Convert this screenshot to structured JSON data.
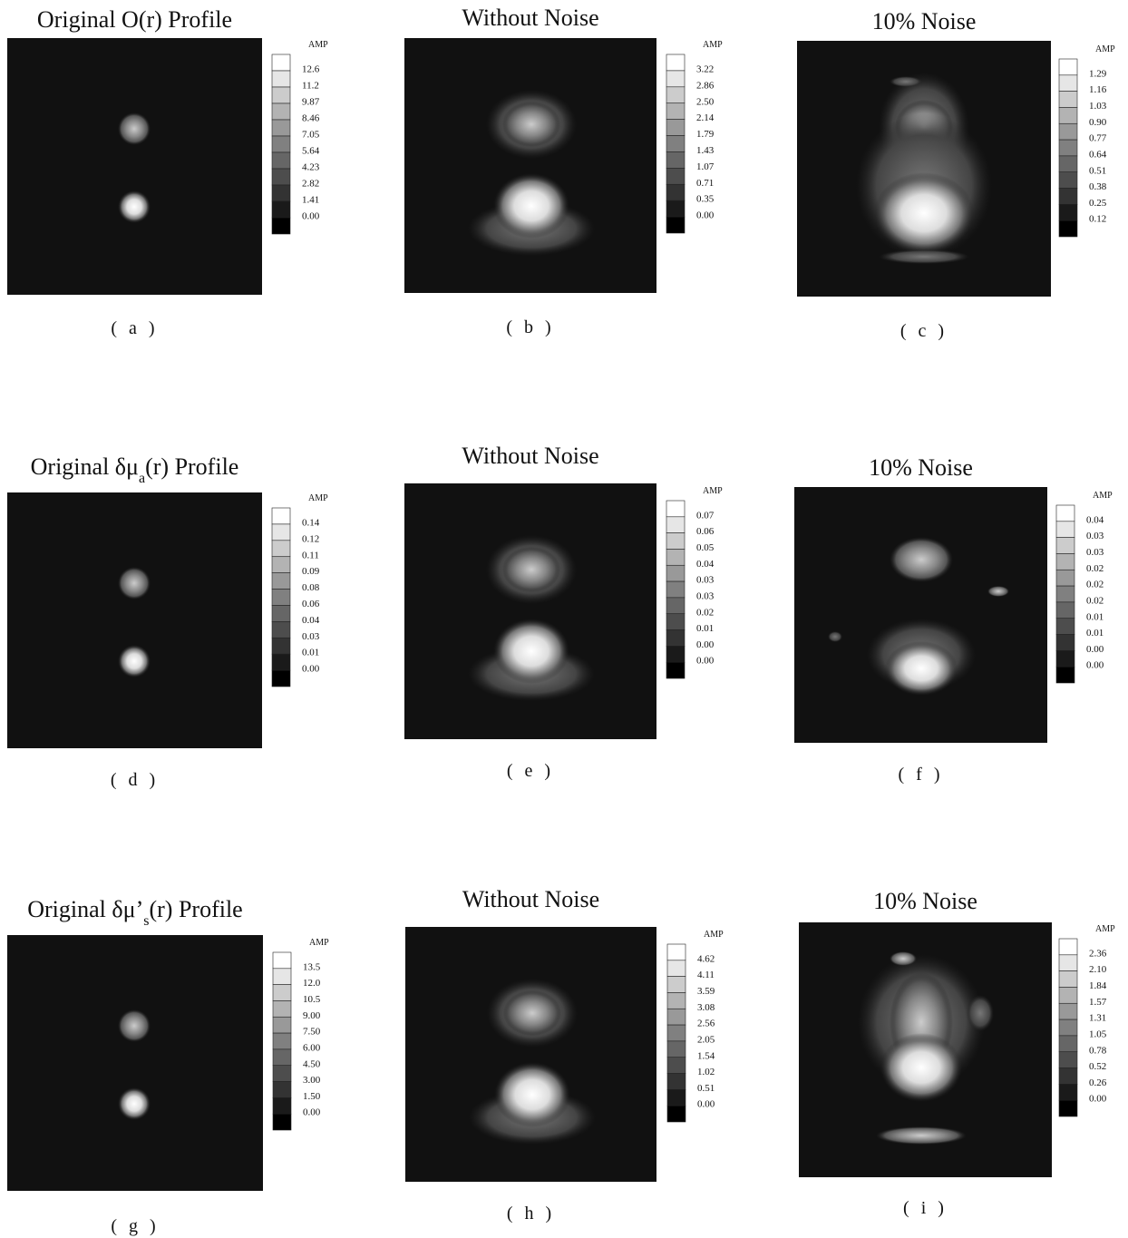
{
  "panels": [
    {
      "title": [
        "Original O(r) Profile"
      ],
      "caption": "( a )",
      "colorbar": {
        "label": "AMP",
        "ticks": [
          "12.6",
          "11.2",
          "9.87",
          "8.46",
          "7.05",
          "5.64",
          "4.23",
          "2.82",
          "1.41",
          "0.00"
        ]
      }
    },
    {
      "title": [
        "Without Noise"
      ],
      "caption": "( b )",
      "colorbar": {
        "label": "AMP",
        "ticks": [
          "3.22",
          "2.86",
          "2.50",
          "2.14",
          "1.79",
          "1.43",
          "1.07",
          "0.71",
          "0.35",
          "0.00"
        ]
      }
    },
    {
      "title": [
        "10% Noise"
      ],
      "caption": "( c )",
      "colorbar": {
        "label": "AMP",
        "ticks": [
          "1.29",
          "1.16",
          "1.03",
          "0.90",
          "0.77",
          "0.64",
          "0.51",
          "0.38",
          "0.25",
          "0.12"
        ]
      }
    },
    {
      "title": [
        "Original δμ",
        "a",
        "(r) Profile"
      ],
      "caption": "( d )",
      "colorbar": {
        "label": "AMP",
        "ticks": [
          "0.14",
          "0.12",
          "0.11",
          "0.09",
          "0.08",
          "0.06",
          "0.04",
          "0.03",
          "0.01",
          "0.00"
        ]
      }
    },
    {
      "title": [
        "Without Noise"
      ],
      "caption": "( e )",
      "colorbar": {
        "label": "AMP",
        "ticks": [
          "0.07",
          "0.06",
          "0.05",
          "0.04",
          "0.03",
          "0.03",
          "0.02",
          "0.01",
          "0.00",
          "0.00"
        ]
      }
    },
    {
      "title": [
        "10% Noise"
      ],
      "caption": "( f )",
      "colorbar": {
        "label": "AMP",
        "ticks": [
          "0.04",
          "0.03",
          "0.03",
          "0.02",
          "0.02",
          "0.02",
          "0.01",
          "0.01",
          "0.00",
          "0.00"
        ]
      }
    },
    {
      "title": [
        "Original δμ’",
        "s",
        "(r) Profile"
      ],
      "caption": "( g )",
      "colorbar": {
        "label": "AMP",
        "ticks": [
          "13.5",
          "12.0",
          "10.5",
          "9.00",
          "7.50",
          "6.00",
          "4.50",
          "3.00",
          "1.50",
          "0.00"
        ]
      }
    },
    {
      "title": [
        "Without Noise"
      ],
      "caption": "( h )",
      "colorbar": {
        "label": "AMP",
        "ticks": [
          "4.62",
          "4.11",
          "3.59",
          "3.08",
          "2.56",
          "2.05",
          "1.54",
          "1.02",
          "0.51",
          "0.00"
        ]
      }
    },
    {
      "title": [
        "10% Noise"
      ],
      "caption": "( i )",
      "colorbar": {
        "label": "AMP",
        "ticks": [
          "2.36",
          "2.10",
          "1.84",
          "1.57",
          "1.31",
          "1.05",
          "0.78",
          "0.52",
          "0.26",
          "0.00"
        ]
      }
    }
  ]
}
